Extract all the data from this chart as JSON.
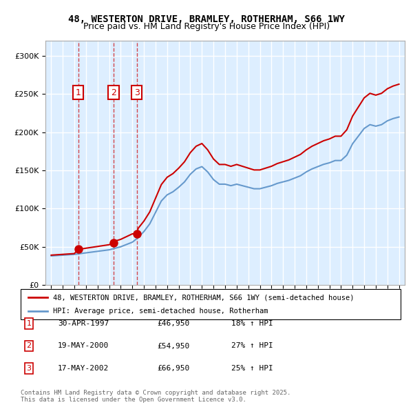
{
  "title_line1": "48, WESTERTON DRIVE, BRAMLEY, ROTHERHAM, S66 1WY",
  "title_line2": "Price paid vs. HM Land Registry's House Price Index (HPI)",
  "legend_label_red": "48, WESTERTON DRIVE, BRAMLEY, ROTHERHAM, S66 1WY (semi-detached house)",
  "legend_label_blue": "HPI: Average price, semi-detached house, Rotherham",
  "transactions": [
    {
      "num": 1,
      "date_label": "30-APR-1997",
      "price": 46950,
      "year": 1997.33,
      "hpi_pct": "18% ↑ HPI"
    },
    {
      "num": 2,
      "date_label": "19-MAY-2000",
      "price": 54950,
      "year": 2000.38,
      "hpi_pct": "27% ↑ HPI"
    },
    {
      "num": 3,
      "date_label": "17-MAY-2002",
      "price": 66950,
      "year": 2002.38,
      "hpi_pct": "25% ↑ HPI"
    }
  ],
  "footnote": "Contains HM Land Registry data © Crown copyright and database right 2025.\nThis data is licensed under the Open Government Licence v3.0.",
  "red_color": "#cc0000",
  "blue_color": "#6699cc",
  "background_chart": "#ddeeff",
  "grid_color": "#ffffff",
  "vline_color": "#cc0000",
  "box_color": "#cc0000",
  "ylim": [
    0,
    320000
  ],
  "yticks": [
    0,
    50000,
    100000,
    150000,
    200000,
    250000,
    300000
  ],
  "xlim_start": 1994.5,
  "xlim_end": 2025.5
}
